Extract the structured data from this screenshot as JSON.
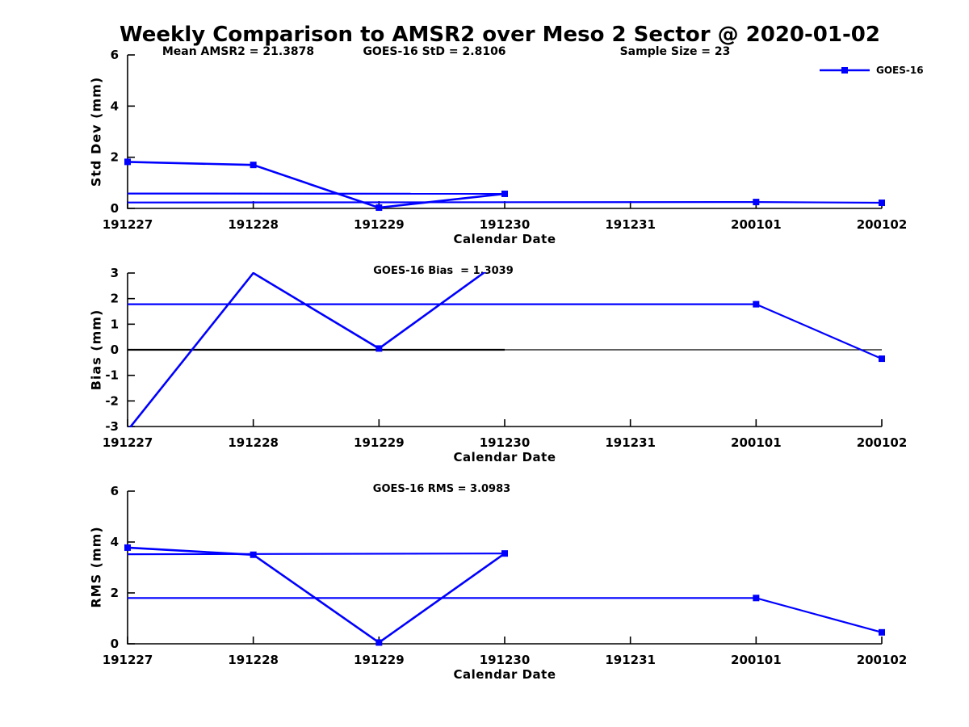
{
  "title": "Weekly Comparison to AMSR2 over Meso 2 Sector @ 2020-01-02",
  "legend": {
    "label": "GOES-16",
    "color": "#0000ff"
  },
  "colors": {
    "series": "#0000ff",
    "axis": "#000000",
    "background": "#ffffff",
    "text": "#000000"
  },
  "stats": {
    "mean_amsr2": 21.3878,
    "goes16_std": 2.8106,
    "sample_size": 23,
    "goes16_bias": 1.3039,
    "goes16_rms": 3.0983
  },
  "x_axis": {
    "label": "Calendar Date",
    "categories": [
      "191227",
      "191228",
      "191229",
      "191230",
      "191231",
      "200101",
      "200102"
    ]
  },
  "chart_data": [
    {
      "type": "line",
      "panel": "std-dev",
      "annotations": [
        "Mean AMSR2 = 21.3878",
        "GOES-16 StD = 2.8106",
        "Sample Size = 23"
      ],
      "ylabel": "Std Dev (mm)",
      "ylim": [
        0,
        6
      ],
      "yticks": [
        0,
        2,
        4,
        6
      ],
      "series": [
        {
          "name": "GOES-16",
          "color": "#0000ff",
          "points": [
            {
              "date": "191227",
              "value": 1.82
            },
            {
              "date": "191228",
              "value": 1.7
            },
            {
              "date": "191229",
              "value": 0.03
            },
            {
              "date": "191230",
              "value": 0.57
            },
            {
              "date": "200101",
              "value": 0.25
            },
            {
              "date": "200102",
              "value": 0.22
            }
          ],
          "segments": [
            [
              [
                0,
                1.82
              ],
              [
                1,
                1.7
              ],
              [
                2,
                0.03
              ],
              [
                3,
                0.57
              ]
            ],
            [
              [
                0,
                0.58
              ],
              [
                3,
                0.57
              ]
            ],
            [
              [
                0,
                0.23
              ],
              [
                5,
                0.25
              ],
              [
                6,
                0.22
              ]
            ]
          ]
        }
      ]
    },
    {
      "type": "line",
      "panel": "bias",
      "title": "GOES-16 Bias  = 1.3039",
      "ylabel": "Bias (mm)",
      "ylim": [
        -3,
        3
      ],
      "yticks": [
        -3,
        -2,
        -1,
        0,
        1,
        2,
        3
      ],
      "reference_lines": [
        {
          "y": 0,
          "color": "#000000",
          "x0": 0,
          "x1": 3,
          "width": 2.2
        },
        {
          "y": 0,
          "color": "#000000",
          "x0": 3,
          "x1": 6,
          "width": 1.2
        }
      ],
      "series": [
        {
          "name": "GOES-16",
          "color": "#0000ff",
          "points": [
            {
              "date": "191229",
              "value": 0.05
            },
            {
              "date": "200101",
              "value": 1.78
            },
            {
              "date": "200102",
              "value": -0.35
            }
          ],
          "clipped_points": [
            {
              "date": "191227",
              "value": -3.15
            },
            {
              "date": "191228",
              "value": 3.0
            },
            {
              "date": "191230",
              "value": 3.6
            }
          ],
          "segments": [
            [
              [
                0,
                -3.15
              ],
              [
                1,
                3.0
              ],
              [
                2,
                0.05
              ],
              [
                3,
                3.6
              ]
            ],
            [
              [
                0,
                1.78
              ],
              [
                5,
                1.78
              ],
              [
                6,
                -0.35
              ]
            ]
          ]
        }
      ]
    },
    {
      "type": "line",
      "panel": "rms",
      "title": "GOES-16 RMS = 3.0983",
      "ylabel": "RMS (mm)",
      "ylim": [
        0,
        6
      ],
      "yticks": [
        0,
        2,
        4,
        6
      ],
      "series": [
        {
          "name": "GOES-16",
          "color": "#0000ff",
          "points": [
            {
              "date": "191227",
              "value": 3.78
            },
            {
              "date": "191228",
              "value": 3.5
            },
            {
              "date": "191229",
              "value": 0.05
            },
            {
              "date": "191230",
              "value": 3.55
            },
            {
              "date": "200101",
              "value": 1.8
            },
            {
              "date": "200102",
              "value": 0.45
            }
          ],
          "segments": [
            [
              [
                0,
                3.78
              ],
              [
                1,
                3.5
              ],
              [
                2,
                0.05
              ],
              [
                3,
                3.55
              ]
            ],
            [
              [
                0,
                3.52
              ],
              [
                3,
                3.55
              ]
            ],
            [
              [
                0,
                1.8
              ],
              [
                5,
                1.8
              ],
              [
                6,
                0.45
              ]
            ]
          ]
        }
      ]
    }
  ]
}
